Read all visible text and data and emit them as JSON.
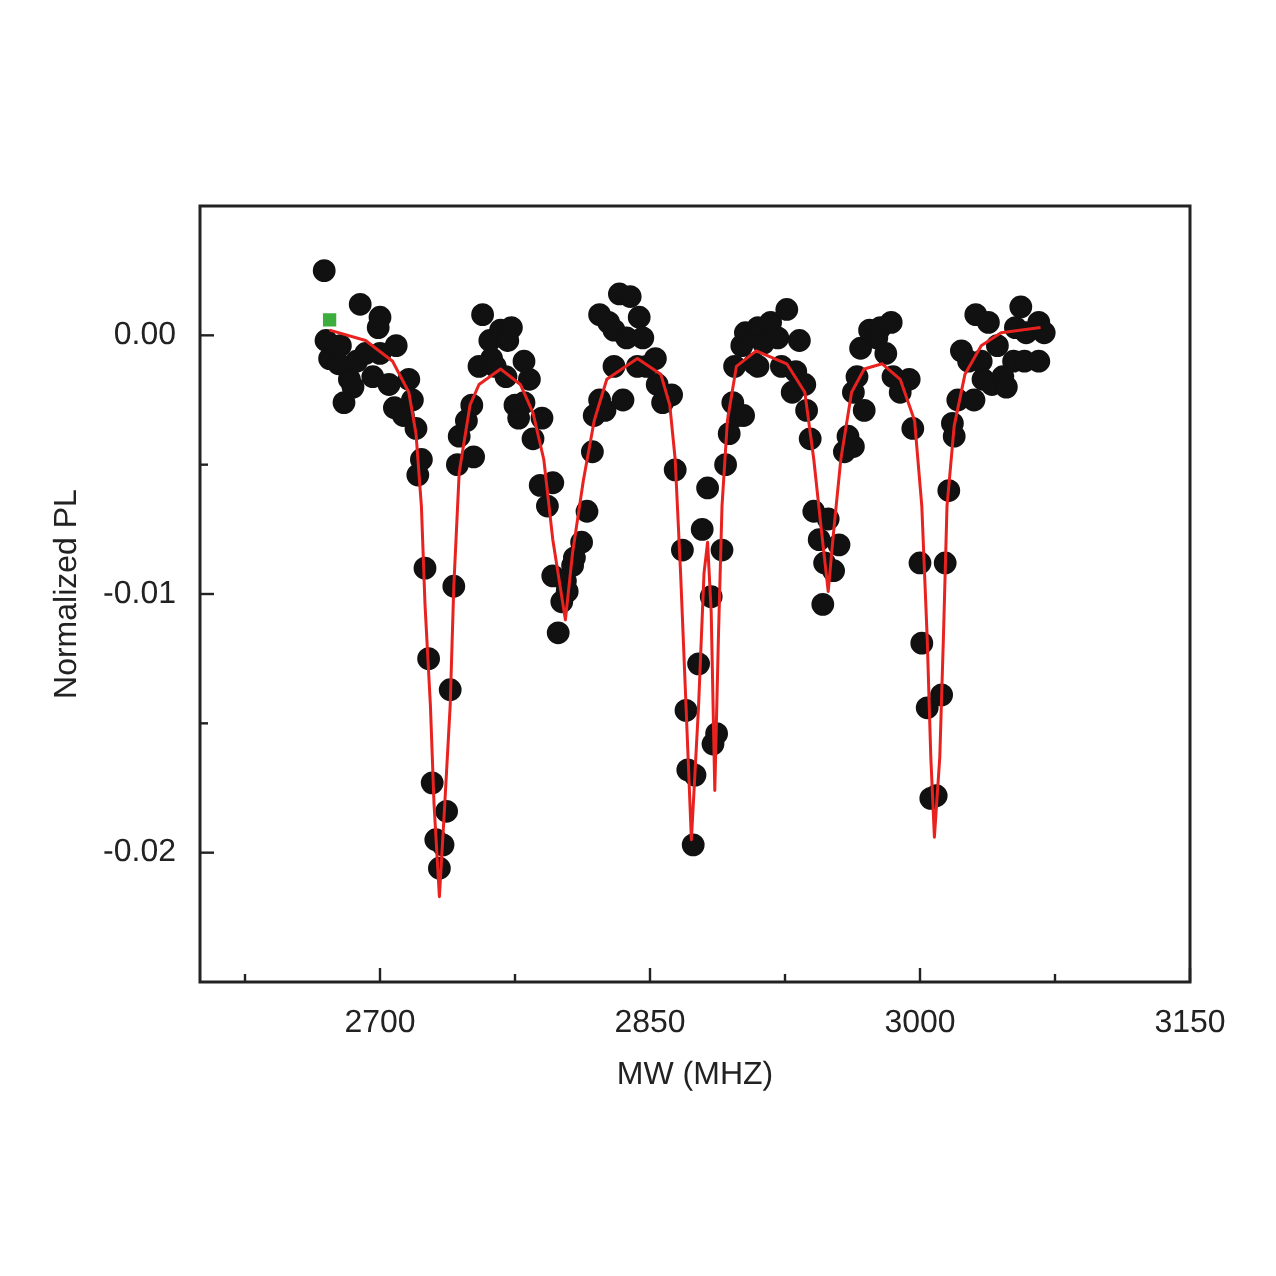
{
  "chart_data": {
    "type": "scatter",
    "xlabel": "MW (MHZ)",
    "ylabel": "Normalized PL",
    "xlim": [
      2600,
      3150
    ],
    "xticks": [
      {
        "value": 2625,
        "label": null
      },
      2700,
      {
        "value": 2775,
        "label": null
      },
      2850,
      {
        "value": 2925,
        "label": null
      },
      3000,
      {
        "value": 3075,
        "label": null
      },
      3150
    ],
    "ylim": [
      -0.025,
      0.005
    ],
    "yticks": [
      {
        "value": -0.02,
        "label": "-0.02"
      },
      {
        "value": -0.015,
        "label": null
      },
      {
        "value": -0.01,
        "label": "-0.01"
      },
      {
        "value": -0.005,
        "label": null
      },
      {
        "value": 0,
        "label": "0.00"
      }
    ],
    "marker": "circle",
    "line_style": "solid",
    "series": [
      {
        "color": "#111111",
        "x": [
          2669,
          2670,
          2672,
          2677,
          2678,
          2680,
          2683,
          2685,
          2687,
          2689,
          2692,
          2696,
          2699,
          2700,
          2700,
          2705,
          2708,
          2709,
          2713,
          2716,
          2718,
          2720,
          2721,
          2723,
          2725,
          2727,
          2729,
          2731,
          2733,
          2735,
          2737,
          2739,
          2741,
          2743,
          2744,
          2748,
          2751,
          2752,
          2755,
          2757,
          2761,
          2762,
          2764,
          2767,
          2770,
          2771,
          2773,
          2775,
          2777,
          2780,
          2780,
          2783,
          2785,
          2789,
          2790,
          2793,
          2796,
          2796,
          2799,
          2801,
          2803,
          2804,
          2807,
          2808,
          2812,
          2815,
          2818,
          2819,
          2822,
          2822,
          2825,
          2827,
          2830,
          2830,
          2833,
          2835,
          2837,
          2839,
          2843,
          2844,
          2846,
          2848,
          2853,
          2854,
          2857,
          2862,
          2864,
          2868,
          2870,
          2871,
          2874,
          2875,
          2877,
          2879,
          2882,
          2884,
          2885,
          2887,
          2890,
          2892,
          2894,
          2896,
          2897,
          2899,
          2901,
          2902,
          2903,
          2908,
          2910,
          2910,
          2913,
          2917,
          2921,
          2923,
          2926,
          2929,
          2931,
          2933,
          2936,
          2937,
          2939,
          2941,
          2944,
          2946,
          2947,
          2949,
          2952,
          2955,
          2958,
          2960,
          2963,
          2963,
          2965,
          2967,
          2969,
          2972,
          2976,
          2978,
          2981,
          2984,
          2985,
          2989,
          2994,
          2996,
          3000,
          3001,
          3004,
          3006,
          3009,
          3012,
          3014,
          3016,
          3018,
          3019,
          3021,
          3023,
          3027,
          3030,
          3031,
          3034,
          3035,
          3038,
          3040,
          3043,
          3046,
          3048,
          3052,
          3053,
          3056,
          3058,
          3059,
          3066,
          3066,
          3069
        ],
        "values": [
          0.0025,
          -0.0002,
          -0.0009,
          -0.0011,
          -0.0004,
          -0.0026,
          -0.0017,
          -0.002,
          -0.001,
          0.0012,
          -0.0007,
          -0.0016,
          0.0003,
          -0.0007,
          0.0007,
          -0.0019,
          -0.0028,
          -0.0004,
          -0.0031,
          -0.0017,
          -0.0025,
          -0.0036,
          -0.0054,
          -0.0048,
          -0.009,
          -0.0125,
          -0.0173,
          -0.0195,
          -0.0206,
          -0.0197,
          -0.0184,
          -0.0137,
          -0.0097,
          -0.005,
          -0.0039,
          -0.0033,
          -0.0027,
          -0.0047,
          -0.0012,
          0.0008,
          -0.0002,
          -0.0009,
          -0.0012,
          0.0002,
          -0.0016,
          -0.0002,
          0.0003,
          -0.0027,
          -0.0032,
          -0.001,
          -0.0026,
          -0.0017,
          -0.004,
          -0.0058,
          -0.0032,
          -0.0066,
          -0.0057,
          -0.0093,
          -0.0115,
          -0.0103,
          -0.0095,
          -0.0099,
          -0.0089,
          -0.0086,
          -0.008,
          -0.0068,
          -0.0045,
          -0.0031,
          -0.0025,
          0.0008,
          -0.0029,
          0.0005,
          0.0002,
          -0.0012,
          0.0016,
          -0.0025,
          -0.0001,
          0.0015,
          -0.0012,
          0.0007,
          -0.0001,
          -0.0012,
          -0.0009,
          -0.0019,
          -0.0026,
          -0.0023,
          -0.0052,
          -0.0083,
          -0.0145,
          -0.0168,
          -0.0197,
          -0.017,
          -0.0127,
          -0.0075,
          -0.0059,
          -0.0101,
          -0.0158,
          -0.0154,
          -0.0083,
          -0.005,
          -0.0038,
          -0.0026,
          -0.0012,
          -0.0031,
          -0.0004,
          -0.0031,
          0.0001,
          -0.0011,
          0.0003,
          -0.0012,
          -0.0003,
          0.0005,
          -0.0001,
          -0.0012,
          0.001,
          -0.0022,
          -0.0014,
          -0.0002,
          -0.0019,
          -0.0029,
          -0.004,
          -0.0068,
          -0.0079,
          -0.0104,
          -0.0088,
          -0.0071,
          -0.0091,
          -0.0081,
          -0.0045,
          -0.0039,
          -0.0043,
          -0.0022,
          -0.0016,
          -0.0005,
          -0.0029,
          0.0002,
          -0.0001,
          0.0003,
          -0.0007,
          0.0005,
          -0.0016,
          -0.0022,
          -0.0017,
          -0.0036,
          -0.0088,
          -0.0119,
          -0.0144,
          -0.0179,
          -0.0178,
          -0.0139,
          -0.0088,
          -0.006,
          -0.0034,
          -0.0039,
          -0.0025,
          -0.0006,
          -0.001,
          -0.0025,
          0.0008,
          -0.001,
          -0.0017,
          0.0005,
          -0.0019,
          -0.0004,
          -0.0016,
          -0.002,
          -0.001,
          0.0003,
          0.0011,
          -0.001,
          0.0001,
          0.0005,
          -0.001,
          0.0001
        ]
      },
      {
        "type": "line",
        "color": "#e8221f",
        "marker": "none",
        "x": [
          2672,
          2692,
          2707,
          2716,
          2720,
          2723,
          2725,
          2728,
          2730,
          2733,
          2736,
          2739,
          2741,
          2744,
          2750,
          2755,
          2767,
          2778,
          2785,
          2791,
          2796,
          2803,
          2807,
          2813,
          2819,
          2826,
          2843,
          2856,
          2861,
          2864,
          2867,
          2870,
          2873,
          2877,
          2880,
          2882,
          2884,
          2886,
          2888,
          2890,
          2893,
          2898,
          2909,
          2926,
          2936,
          2941,
          2945,
          2949,
          2952,
          2956,
          2962,
          2969,
          2979,
          2989,
          2997,
          3001,
          3004,
          3006,
          3008,
          3011,
          3013,
          3015,
          3019,
          3025,
          3034,
          3045,
          3067
        ],
        "values": [
          0.0002,
          -0.0002,
          -0.001,
          -0.0022,
          -0.0038,
          -0.0066,
          -0.0104,
          -0.0143,
          -0.0181,
          -0.0217,
          -0.0181,
          -0.0143,
          -0.0097,
          -0.0053,
          -0.0027,
          -0.0019,
          -0.0013,
          -0.0019,
          -0.003,
          -0.0048,
          -0.0079,
          -0.011,
          -0.0084,
          -0.0056,
          -0.0033,
          -0.0017,
          -0.0009,
          -0.0015,
          -0.0027,
          -0.0048,
          -0.0092,
          -0.0143,
          -0.0195,
          -0.0143,
          -0.0092,
          -0.008,
          -0.0107,
          -0.0176,
          -0.0117,
          -0.0066,
          -0.0033,
          -0.0012,
          -0.0006,
          -0.0011,
          -0.0022,
          -0.0048,
          -0.0074,
          -0.0099,
          -0.0076,
          -0.0048,
          -0.0022,
          -0.0013,
          -0.0011,
          -0.0017,
          -0.0033,
          -0.0066,
          -0.0117,
          -0.0163,
          -0.0194,
          -0.0163,
          -0.0117,
          -0.0066,
          -0.0035,
          -0.0015,
          -0.0004,
          0.0001,
          0.0003
        ]
      },
      {
        "color": "#3cae3c",
        "marker": "square",
        "x": [
          2672
        ],
        "values": [
          0.0006
        ]
      }
    ]
  }
}
